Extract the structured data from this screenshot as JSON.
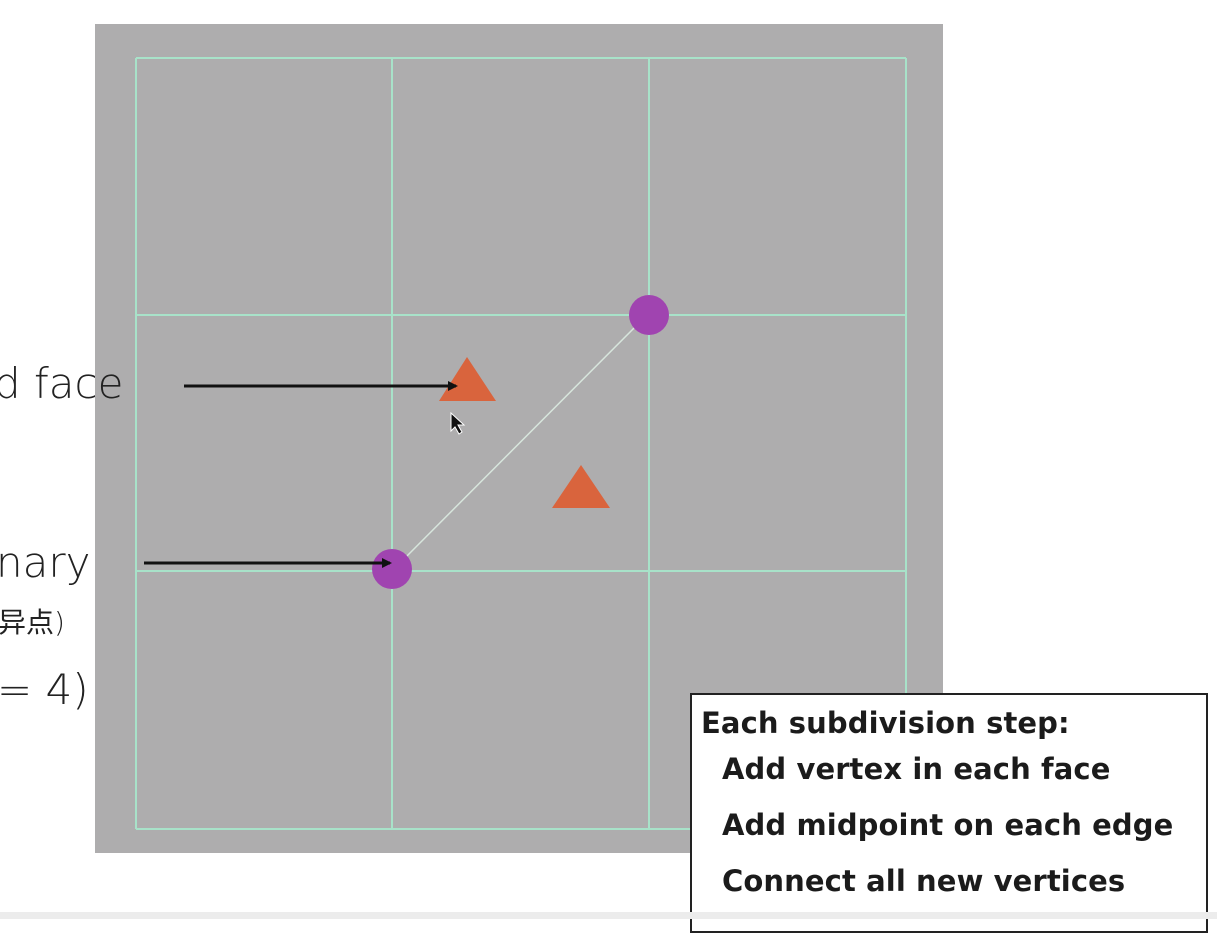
{
  "labels": {
    "face": "d face",
    "nary": "nary",
    "chinese": "异点)",
    "equation": "= 4)"
  },
  "step_box": {
    "title": "Each subdivision step:",
    "items": [
      "Add vertex in each face",
      "Add midpoint on each edge",
      "Connect all new vertices"
    ]
  },
  "colors": {
    "canvas": "#aeadae",
    "grid": "#a8e2c9",
    "vertex": "#a044b0",
    "face_marker": "#d9643d",
    "arrow": "#111111",
    "text": "#222222"
  },
  "icons": {
    "cursor": "cursor-arrow-icon",
    "vertex": "vertex-dot-icon",
    "face": "triangle-face-icon"
  }
}
